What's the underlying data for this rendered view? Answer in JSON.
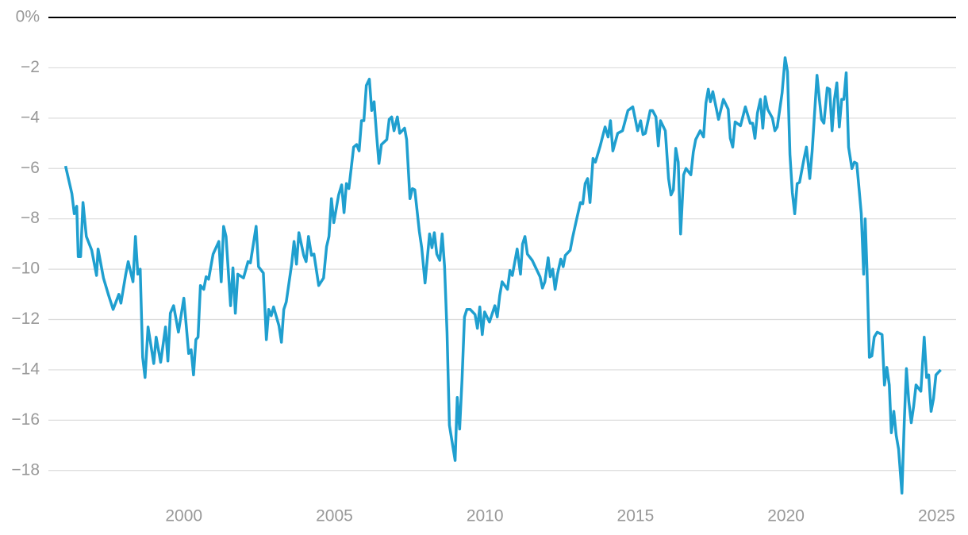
{
  "chart_data": {
    "type": "line",
    "color": "#1f9fcf",
    "grid": true,
    "xlim": [
      1995.5,
      2025.65
    ],
    "ylim": [
      -19.3,
      0
    ],
    "xticks": [
      2000,
      2005,
      2010,
      2015,
      2020,
      2025
    ],
    "yticks": [
      {
        "value": 0,
        "label": "0%"
      },
      {
        "value": -2,
        "label": "−2"
      },
      {
        "value": -4,
        "label": "−4"
      },
      {
        "value": -6,
        "label": "−6"
      },
      {
        "value": -8,
        "label": "−8"
      },
      {
        "value": -10,
        "label": "−10"
      },
      {
        "value": -12,
        "label": "−12"
      },
      {
        "value": -14,
        "label": "−14"
      },
      {
        "value": -16,
        "label": "−16"
      },
      {
        "value": -18,
        "label": "−18"
      }
    ],
    "x": [
      1996.07,
      1996.28,
      1996.36,
      1996.44,
      1996.49,
      1996.57,
      1996.65,
      1996.76,
      1996.94,
      1997.1,
      1997.15,
      1997.33,
      1997.49,
      1997.65,
      1997.84,
      1997.91,
      1998.07,
      1998.15,
      1998.31,
      1998.39,
      1998.47,
      1998.55,
      1998.63,
      1998.71,
      1998.81,
      1999.0,
      1999.08,
      1999.23,
      1999.39,
      1999.47,
      1999.55,
      1999.66,
      1999.82,
      2000.0,
      2000.16,
      2000.24,
      2000.32,
      2000.4,
      2000.47,
      2000.55,
      2000.66,
      2000.74,
      2000.82,
      2000.97,
      2001.16,
      2001.24,
      2001.32,
      2001.4,
      2001.55,
      2001.63,
      2001.71,
      2001.79,
      2001.98,
      2002.13,
      2002.21,
      2002.4,
      2002.48,
      2002.64,
      2002.74,
      2002.82,
      2002.9,
      2002.98,
      2003.16,
      2003.24,
      2003.32,
      2003.4,
      2003.58,
      2003.66,
      2003.74,
      2003.82,
      2003.98,
      2004.06,
      2004.14,
      2004.24,
      2004.32,
      2004.48,
      2004.64,
      2004.74,
      2004.82,
      2004.9,
      2004.98,
      2005.14,
      2005.24,
      2005.32,
      2005.4,
      2005.48,
      2005.64,
      2005.74,
      2005.82,
      2005.9,
      2005.98,
      2006.06,
      2006.16,
      2006.24,
      2006.32,
      2006.4,
      2006.48,
      2006.56,
      2006.74,
      2006.82,
      2006.9,
      2006.98,
      2007.09,
      2007.17,
      2007.33,
      2007.4,
      2007.51,
      2007.59,
      2007.67,
      2007.82,
      2007.9,
      2008.01,
      2008.16,
      2008.24,
      2008.32,
      2008.4,
      2008.5,
      2008.58,
      2008.66,
      2008.74,
      2008.82,
      2009.01,
      2009.08,
      2009.16,
      2009.24,
      2009.32,
      2009.4,
      2009.51,
      2009.67,
      2009.75,
      2009.83,
      2009.91,
      2009.99,
      2010.15,
      2010.33,
      2010.41,
      2010.49,
      2010.57,
      2010.75,
      2010.83,
      2010.91,
      2011.07,
      2011.18,
      2011.25,
      2011.33,
      2011.41,
      2011.57,
      2011.83,
      2011.91,
      2011.99,
      2012.1,
      2012.17,
      2012.25,
      2012.33,
      2012.41,
      2012.52,
      2012.6,
      2012.67,
      2012.83,
      2012.91,
      2013.02,
      2013.17,
      2013.25,
      2013.33,
      2013.41,
      2013.49,
      2013.59,
      2013.67,
      2013.83,
      2013.99,
      2014.09,
      2014.17,
      2014.25,
      2014.41,
      2014.57,
      2014.75,
      2014.91,
      2015.07,
      2015.17,
      2015.25,
      2015.33,
      2015.49,
      2015.57,
      2015.68,
      2015.76,
      2015.83,
      2015.99,
      2016.1,
      2016.18,
      2016.26,
      2016.34,
      2016.42,
      2016.5,
      2016.6,
      2016.68,
      2016.84,
      2016.92,
      2017.0,
      2017.15,
      2017.26,
      2017.34,
      2017.42,
      2017.49,
      2017.57,
      2017.76,
      2017.92,
      2018.08,
      2018.15,
      2018.23,
      2018.31,
      2018.49,
      2018.65,
      2018.81,
      2018.89,
      2018.97,
      2019.05,
      2019.15,
      2019.23,
      2019.31,
      2019.39,
      2019.55,
      2019.63,
      2019.71,
      2019.87,
      2019.97,
      2020.05,
      2020.13,
      2020.21,
      2020.29,
      2020.37,
      2020.45,
      2020.6,
      2020.68,
      2020.79,
      2020.87,
      2021.03,
      2021.11,
      2021.18,
      2021.26,
      2021.37,
      2021.45,
      2021.53,
      2021.61,
      2021.69,
      2021.77,
      2021.85,
      2021.92,
      2022.0,
      2022.08,
      2022.19,
      2022.27,
      2022.35,
      2022.42,
      2022.5,
      2022.58,
      2022.63,
      2022.69,
      2022.77,
      2022.85,
      2022.93,
      2023.03,
      2023.19,
      2023.27,
      2023.35,
      2023.43,
      2023.5,
      2023.58,
      2023.66,
      2023.74,
      2023.85,
      2023.93,
      2024.0,
      2024.08,
      2024.16,
      2024.24,
      2024.32,
      2024.48,
      2024.59,
      2024.67,
      2024.74,
      2024.82,
      2024.9,
      2024.98,
      2025.14
    ],
    "values": [
      -5.9,
      -7.0,
      -7.8,
      -7.5,
      -9.5,
      -9.5,
      -7.35,
      -8.7,
      -9.25,
      -10.25,
      -9.2,
      -10.35,
      -11.0,
      -11.6,
      -11.0,
      -11.35,
      -10.2,
      -9.7,
      -10.5,
      -8.7,
      -10.2,
      -10.0,
      -13.5,
      -14.3,
      -12.3,
      -13.75,
      -12.7,
      -13.7,
      -12.3,
      -13.65,
      -11.75,
      -11.45,
      -12.5,
      -11.15,
      -13.35,
      -13.2,
      -14.2,
      -12.8,
      -12.7,
      -10.65,
      -10.8,
      -10.3,
      -10.4,
      -9.4,
      -8.9,
      -10.5,
      -8.3,
      -8.7,
      -11.45,
      -9.95,
      -11.75,
      -10.2,
      -10.35,
      -9.7,
      -9.75,
      -8.3,
      -9.9,
      -10.15,
      -12.8,
      -11.6,
      -11.85,
      -11.5,
      -12.25,
      -12.9,
      -11.6,
      -11.3,
      -9.8,
      -8.9,
      -9.8,
      -8.55,
      -9.45,
      -9.7,
      -8.7,
      -9.45,
      -9.4,
      -10.65,
      -10.35,
      -9.1,
      -8.7,
      -7.2,
      -8.15,
      -7.05,
      -6.65,
      -7.75,
      -6.6,
      -6.8,
      -5.15,
      -5.05,
      -5.3,
      -4.1,
      -4.1,
      -2.7,
      -2.45,
      -3.7,
      -3.35,
      -4.65,
      -5.8,
      -5.05,
      -4.85,
      -4.05,
      -3.95,
      -4.5,
      -3.95,
      -4.6,
      -4.4,
      -4.85,
      -7.2,
      -6.8,
      -6.85,
      -8.5,
      -9.15,
      -10.55,
      -8.6,
      -9.15,
      -8.55,
      -9.4,
      -9.65,
      -8.6,
      -9.9,
      -12.5,
      -16.2,
      -17.6,
      -15.1,
      -16.35,
      -14.4,
      -11.9,
      -11.6,
      -11.6,
      -11.8,
      -12.35,
      -11.5,
      -12.6,
      -11.7,
      -12.1,
      -11.45,
      -11.9,
      -11.05,
      -10.5,
      -10.8,
      -10.05,
      -10.25,
      -9.2,
      -10.2,
      -9.0,
      -8.7,
      -9.4,
      -9.65,
      -10.3,
      -10.75,
      -10.5,
      -9.55,
      -10.3,
      -10.0,
      -10.8,
      -10.2,
      -9.6,
      -9.9,
      -9.45,
      -9.25,
      -8.75,
      -8.15,
      -7.35,
      -7.4,
      -6.6,
      -6.4,
      -7.35,
      -5.6,
      -5.75,
      -5.1,
      -4.35,
      -4.75,
      -4.1,
      -5.3,
      -4.6,
      -4.5,
      -3.7,
      -3.55,
      -4.5,
      -4.1,
      -4.65,
      -4.6,
      -3.7,
      -3.7,
      -3.95,
      -5.1,
      -4.1,
      -4.5,
      -6.4,
      -7.05,
      -6.85,
      -5.2,
      -5.75,
      -8.6,
      -6.25,
      -6.0,
      -6.25,
      -5.35,
      -4.85,
      -4.5,
      -4.75,
      -3.4,
      -2.85,
      -3.35,
      -2.95,
      -4.05,
      -3.25,
      -3.65,
      -4.8,
      -5.15,
      -4.15,
      -4.3,
      -3.55,
      -4.2,
      -4.2,
      -4.8,
      -3.8,
      -3.25,
      -4.4,
      -3.15,
      -3.65,
      -4.0,
      -4.5,
      -4.35,
      -3.0,
      -1.6,
      -2.15,
      -5.45,
      -6.95,
      -7.8,
      -6.6,
      -6.55,
      -5.6,
      -5.15,
      -6.4,
      -5.3,
      -2.3,
      -3.25,
      -4.05,
      -4.2,
      -2.8,
      -2.85,
      -4.5,
      -3.25,
      -2.6,
      -4.35,
      -3.25,
      -3.25,
      -2.2,
      -5.15,
      -6.0,
      -5.75,
      -5.8,
      -6.7,
      -7.8,
      -10.2,
      -8.0,
      -10.05,
      -13.5,
      -13.45,
      -12.7,
      -12.5,
      -12.6,
      -14.6,
      -13.9,
      -14.6,
      -16.5,
      -15.65,
      -16.6,
      -17.15,
      -18.9,
      -16.05,
      -13.95,
      -15.25,
      -16.1,
      -15.45,
      -14.6,
      -14.85,
      -12.7,
      -14.3,
      -14.2,
      -15.65,
      -15.15,
      -14.2,
      -14.0
    ]
  }
}
